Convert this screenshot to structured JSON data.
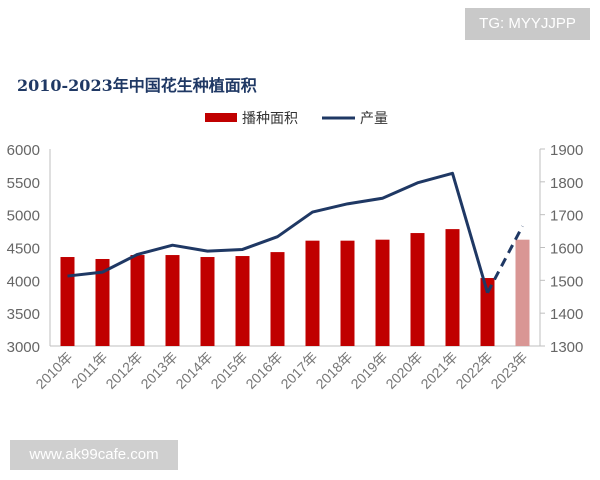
{
  "watermarks": {
    "top": "TG: MYYJJPP",
    "bottom": "www.ak99cafe.com"
  },
  "chart_data": {
    "type": "bar+line",
    "title": "2010-2023年中国花生种植面积",
    "categories": [
      "2010年",
      "2011年",
      "2012年",
      "2013年",
      "2014年",
      "2015年",
      "2016年",
      "2017年",
      "2018年",
      "2019年",
      "2020年",
      "2021年",
      "2022年",
      "2023年"
    ],
    "series": [
      {
        "name": "播种面积",
        "type": "bar",
        "axis": "left",
        "color": "#c00000",
        "projected_color": "#d99694",
        "values": [
          4355,
          4325,
          4385,
          4385,
          4355,
          4370,
          4430,
          4604,
          4604,
          4619,
          4720,
          4780,
          4035,
          4619
        ]
      },
      {
        "name": "产量",
        "type": "line",
        "axis": "right",
        "color": "#1f3864",
        "values": [
          1513,
          1525,
          1579,
          1607,
          1589,
          1594,
          1633,
          1708,
          1733,
          1750,
          1797,
          1826,
          1462,
          1665
        ],
        "dashed_from": "2022年"
      }
    ],
    "left_axis": {
      "ylim": [
        3000,
        6000
      ],
      "ticks": [
        "3000",
        "3500",
        "4000",
        "4500",
        "5000",
        "5500",
        "6000"
      ]
    },
    "right_axis": {
      "ylim": [
        1300,
        1900
      ],
      "ticks": [
        "1300",
        "1400",
        "1500",
        "1600",
        "1700",
        "1800",
        "1900"
      ]
    },
    "legend": "top-right",
    "grid": false
  }
}
